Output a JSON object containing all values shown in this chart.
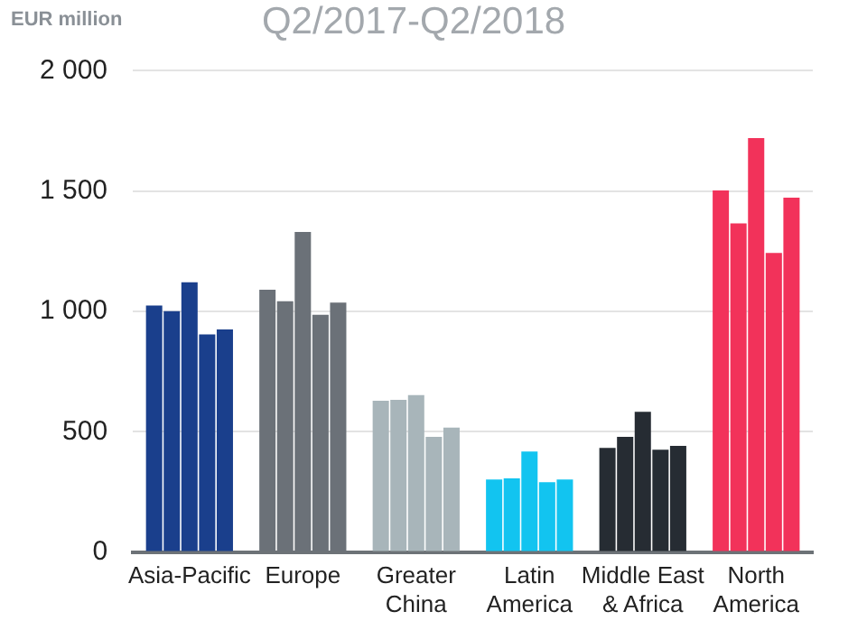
{
  "chart_data": {
    "type": "bar",
    "title": "Q2/2017-Q2/2018",
    "ylabel": "EUR million",
    "categories": [
      "Asia-Pacific",
      "Europe",
      "Greater China",
      "Latin America",
      "Middle East & Africa",
      "North America"
    ],
    "series": [
      {
        "colors": [
          "#1a3f8c",
          "#6b7178",
          "#a8b5ba",
          "#12c4f0",
          "#262c33",
          "#f2325a"
        ],
        "values": [
          1024,
          1090,
          629,
          301,
          433,
          1503
        ]
      },
      {
        "colors": [
          "#1a3f8c",
          "#6b7178",
          "#a8b5ba",
          "#12c4f0",
          "#262c33",
          "#f2325a"
        ],
        "values": [
          1001,
          1042,
          632,
          306,
          479,
          1366
        ]
      },
      {
        "colors": [
          "#1a3f8c",
          "#6b7178",
          "#a8b5ba",
          "#12c4f0",
          "#262c33",
          "#f2325a"
        ],
        "values": [
          1121,
          1330,
          652,
          418,
          583,
          1720
        ]
      },
      {
        "colors": [
          "#1a3f8c",
          "#6b7178",
          "#a8b5ba",
          "#12c4f0",
          "#262c33",
          "#f2325a"
        ],
        "values": [
          904,
          986,
          479,
          290,
          425,
          1243
        ]
      },
      {
        "colors": [
          "#1a3f8c",
          "#6b7178",
          "#a8b5ba",
          "#12c4f0",
          "#262c33",
          "#f2325a"
        ],
        "values": [
          925,
          1037,
          517,
          301,
          441,
          1473
        ]
      }
    ],
    "ylim": [
      0,
      2000
    ],
    "yticks": [
      0,
      {
        "value": 500,
        "label": "500"
      },
      {
        "value": 1000,
        "label": "1 000"
      },
      {
        "value": 1500,
        "label": "1 500"
      },
      {
        "value": 2000,
        "label": "2 000"
      }
    ],
    "grid": "y",
    "legend": false
  }
}
